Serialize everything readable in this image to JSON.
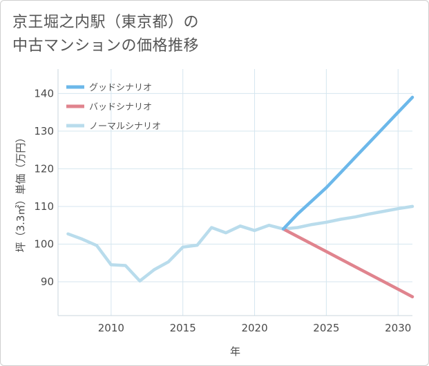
{
  "title": {
    "line1": "京王堀之内駅（東京都）の",
    "line2": "中古マンションの価格推移"
  },
  "chart_data": {
    "type": "line",
    "title": "京王堀之内駅（東京都）の中古マンションの価格推移",
    "xlabel": "年",
    "ylabel": "坪（3.3㎡）単価（万円）",
    "xlim": [
      2006.3,
      2031
    ],
    "ylim": [
      81,
      146.5
    ],
    "x_ticks": [
      2010,
      2015,
      2020,
      2025,
      2030
    ],
    "y_ticks": [
      90,
      100,
      110,
      120,
      130,
      140
    ],
    "legend_position": "top-left",
    "series": [
      {
        "name": "グッドシナリオ",
        "color": "#6cb8ea",
        "x": [
          2022,
          2023,
          2024,
          2025,
          2026,
          2027,
          2028,
          2029,
          2030,
          2031
        ],
        "values": [
          104.0,
          108.0,
          111.5,
          115.0,
          119.0,
          123.0,
          127.0,
          131.0,
          135.0,
          139.0
        ]
      },
      {
        "name": "バッドシナリオ",
        "color": "#e0848e",
        "x": [
          2022,
          2023,
          2024,
          2025,
          2026,
          2027,
          2028,
          2029,
          2030,
          2031
        ],
        "values": [
          104.0,
          102.0,
          100.0,
          98.0,
          96.0,
          94.0,
          92.0,
          90.0,
          88.0,
          86.0
        ]
      },
      {
        "name": "ノーマルシナリオ",
        "color": "#b9dcec",
        "x": [
          2007,
          2008,
          2009,
          2010,
          2011,
          2012,
          2013,
          2014,
          2015,
          2016,
          2017,
          2018,
          2019,
          2020,
          2021,
          2022,
          2023,
          2024,
          2025,
          2026,
          2027,
          2028,
          2029,
          2030,
          2031
        ],
        "values": [
          102.7,
          101.3,
          99.6,
          94.5,
          94.3,
          90.2,
          93.2,
          95.3,
          99.2,
          99.7,
          104.4,
          103.0,
          104.8,
          103.6,
          105.0,
          104.0,
          104.4,
          105.2,
          105.8,
          106.6,
          107.2,
          108.0,
          108.7,
          109.4,
          110.0
        ]
      }
    ]
  }
}
